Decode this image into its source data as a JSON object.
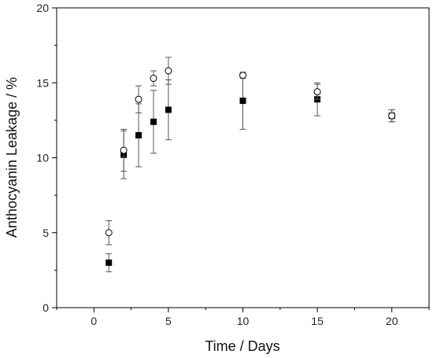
{
  "chart_data": {
    "type": "scatter",
    "xlabel": "Time / Days",
    "ylabel": "Anthocyanin Leakage / %",
    "xlim": [
      -2.5,
      22.5
    ],
    "ylim": [
      0,
      20
    ],
    "xticks": [
      0,
      5,
      10,
      15,
      20
    ],
    "yticks": [
      0,
      5,
      10,
      15,
      20
    ],
    "grid": false,
    "legend": "none",
    "series": [
      {
        "marker": "filled-square",
        "color": "#000000",
        "x": [
          1,
          2,
          3,
          4,
          5,
          10,
          15,
          20
        ],
        "y": [
          3.0,
          10.2,
          11.5,
          12.4,
          13.2,
          13.8,
          13.9,
          12.8
        ],
        "err": [
          0.6,
          1.6,
          2.1,
          2.1,
          2.0,
          1.9,
          1.1,
          0.4
        ]
      },
      {
        "marker": "open-circle",
        "color": "#000000",
        "x": [
          1,
          2,
          3,
          4,
          5,
          10,
          15,
          20
        ],
        "y": [
          5.0,
          10.5,
          13.9,
          15.3,
          15.8,
          15.5,
          14.4,
          12.8
        ],
        "err": [
          0.8,
          1.4,
          0.9,
          0.5,
          0.9,
          0.2,
          0.5,
          0.4
        ]
      }
    ]
  }
}
